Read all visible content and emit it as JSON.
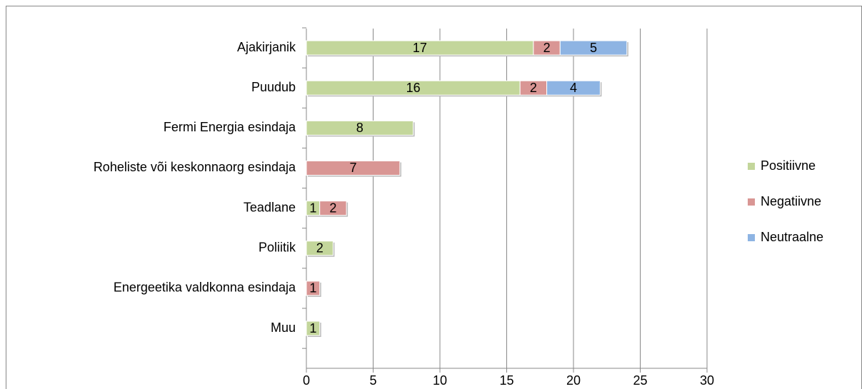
{
  "chart_data": {
    "type": "stacked_barh",
    "categories": [
      "Ajakirjanik",
      "Puudub",
      "Fermi Energia esindaja",
      "Roheliste või keskonnaorg esindaja",
      "Teadlane",
      "Poliitik",
      "Energeetika valdkonna esindaja",
      "Muu"
    ],
    "series": [
      {
        "name": "Positiivne",
        "color": "#c3d69b",
        "values": [
          17,
          16,
          8,
          null,
          1,
          2,
          null,
          1
        ]
      },
      {
        "name": "Negatiivne",
        "color": "#d99694",
        "values": [
          2,
          2,
          null,
          7,
          2,
          null,
          1,
          null
        ]
      },
      {
        "name": "Neutraalne",
        "color": "#8eb4e3",
        "values": [
          5,
          4,
          null,
          null,
          null,
          null,
          null,
          null
        ]
      }
    ],
    "xlim": [
      0,
      30
    ],
    "xticks": [
      0,
      5,
      10,
      15,
      20,
      25,
      30
    ],
    "grid": true,
    "legend": "right"
  }
}
